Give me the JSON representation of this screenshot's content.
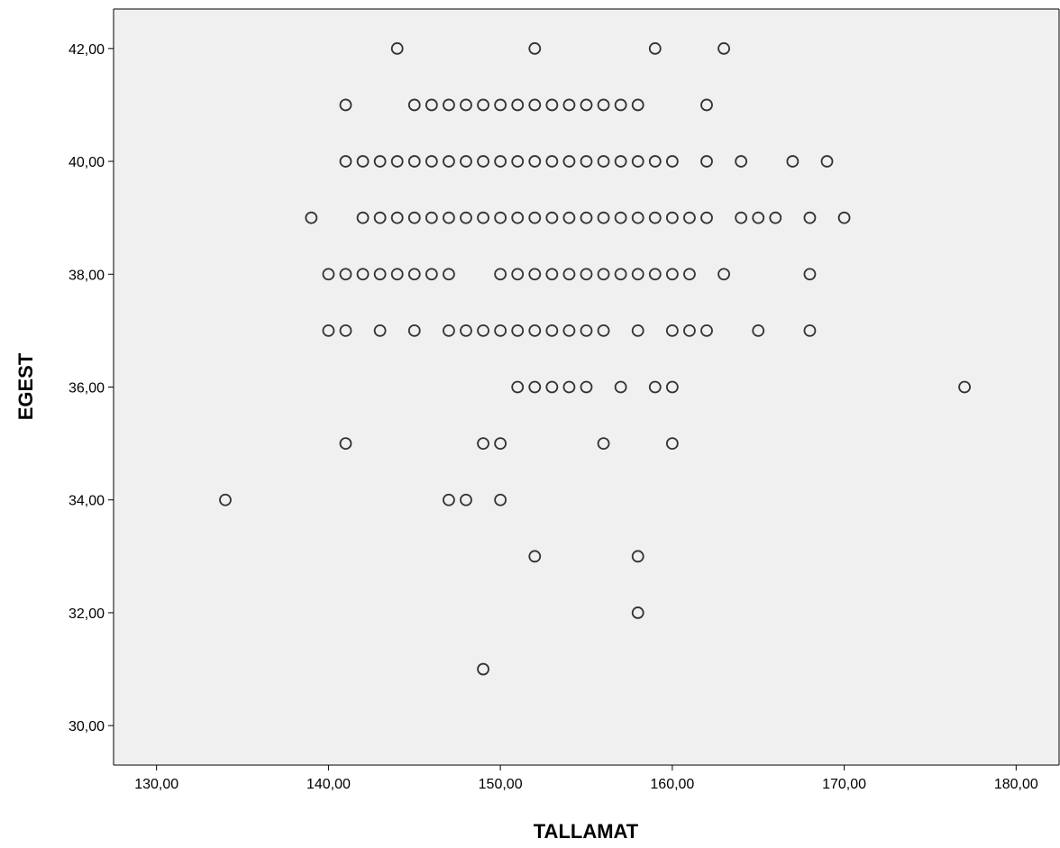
{
  "chart_data": {
    "type": "scatter",
    "title": "",
    "xlabel": "TALLAMAT",
    "ylabel": "EGEST",
    "xlim": [
      127.5,
      182.5
    ],
    "ylim": [
      29.3,
      42.7
    ],
    "x_ticks": [
      130,
      140,
      150,
      160,
      170,
      180
    ],
    "x_tick_labels": [
      "130,00",
      "140,00",
      "150,00",
      "160,00",
      "170,00",
      "180,00"
    ],
    "y_ticks": [
      30,
      32,
      34,
      36,
      38,
      40,
      42
    ],
    "y_tick_labels": [
      "30,00",
      "32,00",
      "34,00",
      "36,00",
      "38,00",
      "40,00",
      "42,00"
    ],
    "grid": false,
    "legend": "none",
    "colors": {
      "plot_background": "#f0f0f0",
      "marker_stroke": "#333333",
      "axis": "#000000"
    },
    "series": [
      {
        "points": [
          [
            144,
            42
          ],
          [
            152,
            42
          ],
          [
            159,
            42
          ],
          [
            163,
            42
          ],
          [
            141,
            41
          ],
          [
            145,
            41
          ],
          [
            146,
            41
          ],
          [
            147,
            41
          ],
          [
            148,
            41
          ],
          [
            149,
            41
          ],
          [
            150,
            41
          ],
          [
            151,
            41
          ],
          [
            152,
            41
          ],
          [
            153,
            41
          ],
          [
            154,
            41
          ],
          [
            155,
            41
          ],
          [
            156,
            41
          ],
          [
            157,
            41
          ],
          [
            158,
            41
          ],
          [
            162,
            41
          ],
          [
            141,
            40
          ],
          [
            142,
            40
          ],
          [
            143,
            40
          ],
          [
            144,
            40
          ],
          [
            145,
            40
          ],
          [
            146,
            40
          ],
          [
            147,
            40
          ],
          [
            148,
            40
          ],
          [
            149,
            40
          ],
          [
            150,
            40
          ],
          [
            151,
            40
          ],
          [
            152,
            40
          ],
          [
            153,
            40
          ],
          [
            154,
            40
          ],
          [
            155,
            40
          ],
          [
            156,
            40
          ],
          [
            157,
            40
          ],
          [
            158,
            40
          ],
          [
            159,
            40
          ],
          [
            160,
            40
          ],
          [
            162,
            40
          ],
          [
            164,
            40
          ],
          [
            167,
            40
          ],
          [
            169,
            40
          ],
          [
            139,
            39
          ],
          [
            142,
            39
          ],
          [
            143,
            39
          ],
          [
            144,
            39
          ],
          [
            145,
            39
          ],
          [
            146,
            39
          ],
          [
            147,
            39
          ],
          [
            148,
            39
          ],
          [
            149,
            39
          ],
          [
            150,
            39
          ],
          [
            151,
            39
          ],
          [
            152,
            39
          ],
          [
            153,
            39
          ],
          [
            154,
            39
          ],
          [
            155,
            39
          ],
          [
            156,
            39
          ],
          [
            157,
            39
          ],
          [
            158,
            39
          ],
          [
            159,
            39
          ],
          [
            160,
            39
          ],
          [
            161,
            39
          ],
          [
            162,
            39
          ],
          [
            164,
            39
          ],
          [
            165,
            39
          ],
          [
            166,
            39
          ],
          [
            168,
            39
          ],
          [
            170,
            39
          ],
          [
            140,
            38
          ],
          [
            141,
            38
          ],
          [
            142,
            38
          ],
          [
            143,
            38
          ],
          [
            144,
            38
          ],
          [
            145,
            38
          ],
          [
            146,
            38
          ],
          [
            147,
            38
          ],
          [
            150,
            38
          ],
          [
            151,
            38
          ],
          [
            152,
            38
          ],
          [
            153,
            38
          ],
          [
            154,
            38
          ],
          [
            155,
            38
          ],
          [
            156,
            38
          ],
          [
            157,
            38
          ],
          [
            158,
            38
          ],
          [
            159,
            38
          ],
          [
            160,
            38
          ],
          [
            161,
            38
          ],
          [
            163,
            38
          ],
          [
            168,
            38
          ],
          [
            140,
            37
          ],
          [
            141,
            37
          ],
          [
            143,
            37
          ],
          [
            145,
            37
          ],
          [
            147,
            37
          ],
          [
            148,
            37
          ],
          [
            149,
            37
          ],
          [
            150,
            37
          ],
          [
            151,
            37
          ],
          [
            152,
            37
          ],
          [
            153,
            37
          ],
          [
            154,
            37
          ],
          [
            155,
            37
          ],
          [
            156,
            37
          ],
          [
            158,
            37
          ],
          [
            160,
            37
          ],
          [
            161,
            37
          ],
          [
            162,
            37
          ],
          [
            165,
            37
          ],
          [
            168,
            37
          ],
          [
            151,
            36
          ],
          [
            152,
            36
          ],
          [
            153,
            36
          ],
          [
            154,
            36
          ],
          [
            155,
            36
          ],
          [
            157,
            36
          ],
          [
            159,
            36
          ],
          [
            160,
            36
          ],
          [
            177,
            36
          ],
          [
            141,
            35
          ],
          [
            149,
            35
          ],
          [
            150,
            35
          ],
          [
            156,
            35
          ],
          [
            160,
            35
          ],
          [
            134,
            34
          ],
          [
            147,
            34
          ],
          [
            148,
            34
          ],
          [
            150,
            34
          ],
          [
            152,
            33
          ],
          [
            158,
            33
          ],
          [
            158,
            32
          ],
          [
            149,
            31
          ]
        ]
      }
    ]
  }
}
